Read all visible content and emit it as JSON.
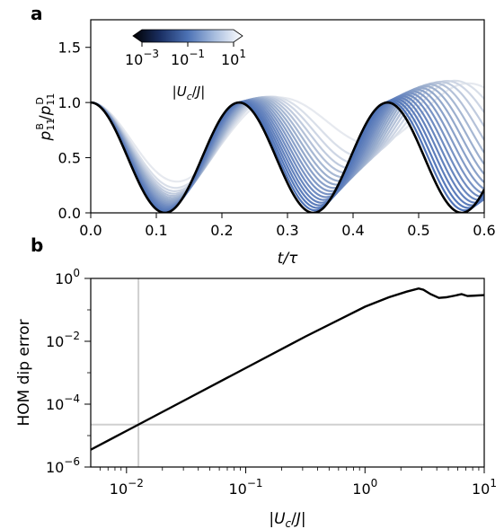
{
  "panels": {
    "a": {
      "label": "a"
    },
    "b": {
      "label": "b"
    }
  },
  "chart_data": [
    {
      "type": "line",
      "panel": "a",
      "xlabel": "t/τ",
      "ylabel": "p₁₁ᴮ/p₁₁ᴰ",
      "xlim": [
        0.0,
        0.6
      ],
      "ylim": [
        0.0,
        1.75
      ],
      "xticks": [
        0.0,
        0.1,
        0.2,
        0.3,
        0.4,
        0.5,
        0.6
      ],
      "xtick_labels": [
        "0.0",
        "0.1",
        "0.2",
        "0.3",
        "0.4",
        "0.5",
        "0.6"
      ],
      "yticks": [
        0.0,
        0.5,
        1.0,
        1.5
      ],
      "ytick_labels": [
        "0.0",
        "0.5",
        "1.0",
        "1.5"
      ],
      "grid": false,
      "colorbar": {
        "label": "|U_c/J|",
        "scale": "log",
        "range_exponents": [
          -3,
          1
        ],
        "ticks": [
          {
            "base": "10",
            "exp": "−3",
            "value_exponent": -3
          },
          {
            "base": "10",
            "exp": "−1",
            "value_exponent": -1
          },
          {
            "base": "10",
            "exp": "1",
            "value_exponent": 1
          }
        ],
        "colormap": [
          "#000000",
          "#1a2f63",
          "#4c72b5",
          "#a9bedf",
          "#ffffff"
        ],
        "placement": "top-left"
      },
      "reference_curve": {
        "color": "#000000",
        "description_values": "ratio = (1 + cos(2π·t·4.42)) / 2",
        "freq_per_tau": 4.42,
        "x_start": 0.0,
        "x_end": 0.6
      },
      "family": {
        "count": 18,
        "freq_per_tau_range": [
          3.5,
          4.42
        ],
        "peak_overshoot_range": [
          0.0,
          0.5
        ],
        "floor_range": [
          0.0,
          0.62
        ],
        "colors_from_light_to_dark": [
          "#e6e9ef",
          "#9fb1cf",
          "#6d8ac0",
          "#4a6fb6"
        ]
      }
    },
    {
      "type": "line",
      "panel": "b",
      "xlabel": "|U_c/J|",
      "ylabel": "HOM dip error",
      "xscale": "log",
      "yscale": "log",
      "xlim_exponents": [
        -2.3,
        1
      ],
      "ylim_exponents": [
        -6,
        0
      ],
      "xticks": [
        {
          "base": "10",
          "exp": "−2",
          "value_exponent": -2
        },
        {
          "base": "10",
          "exp": "−1",
          "value_exponent": -1
        },
        {
          "base": "10",
          "exp": "0",
          "value_exponent": 0
        },
        {
          "base": "10",
          "exp": "1",
          "value_exponent": 1
        }
      ],
      "yticks": [
        {
          "base": "10",
          "exp": "−6",
          "value_exponent": -6
        },
        {
          "base": "10",
          "exp": "−4",
          "value_exponent": -4
        },
        {
          "base": "10",
          "exp": "−2",
          "value_exponent": -2
        },
        {
          "base": "10",
          "exp": "0",
          "value_exponent": 0
        }
      ],
      "grid": false,
      "series": [
        {
          "color": "#000000",
          "points_exp": [
            [
              -2.3,
              -5.45
            ],
            [
              -2.0,
              -4.85
            ],
            [
              -1.5,
              -3.85
            ],
            [
              -1.0,
              -2.85
            ],
            [
              -0.5,
              -1.85
            ],
            [
              0.0,
              -0.9
            ],
            [
              0.2,
              -0.6
            ],
            [
              0.35,
              -0.42
            ],
            [
              0.45,
              -0.32
            ],
            [
              0.49,
              -0.36
            ],
            [
              0.55,
              -0.5
            ],
            [
              0.62,
              -0.62
            ],
            [
              0.68,
              -0.6
            ],
            [
              0.75,
              -0.55
            ],
            [
              0.81,
              -0.5
            ],
            [
              0.86,
              -0.56
            ],
            [
              0.91,
              -0.55
            ],
            [
              1.0,
              -0.53
            ]
          ]
        }
      ],
      "guide_lines": {
        "color": "#d0d0d0",
        "vertical_x_exponent": -1.9,
        "horizontal_y_exponent": -4.65
      }
    }
  ]
}
